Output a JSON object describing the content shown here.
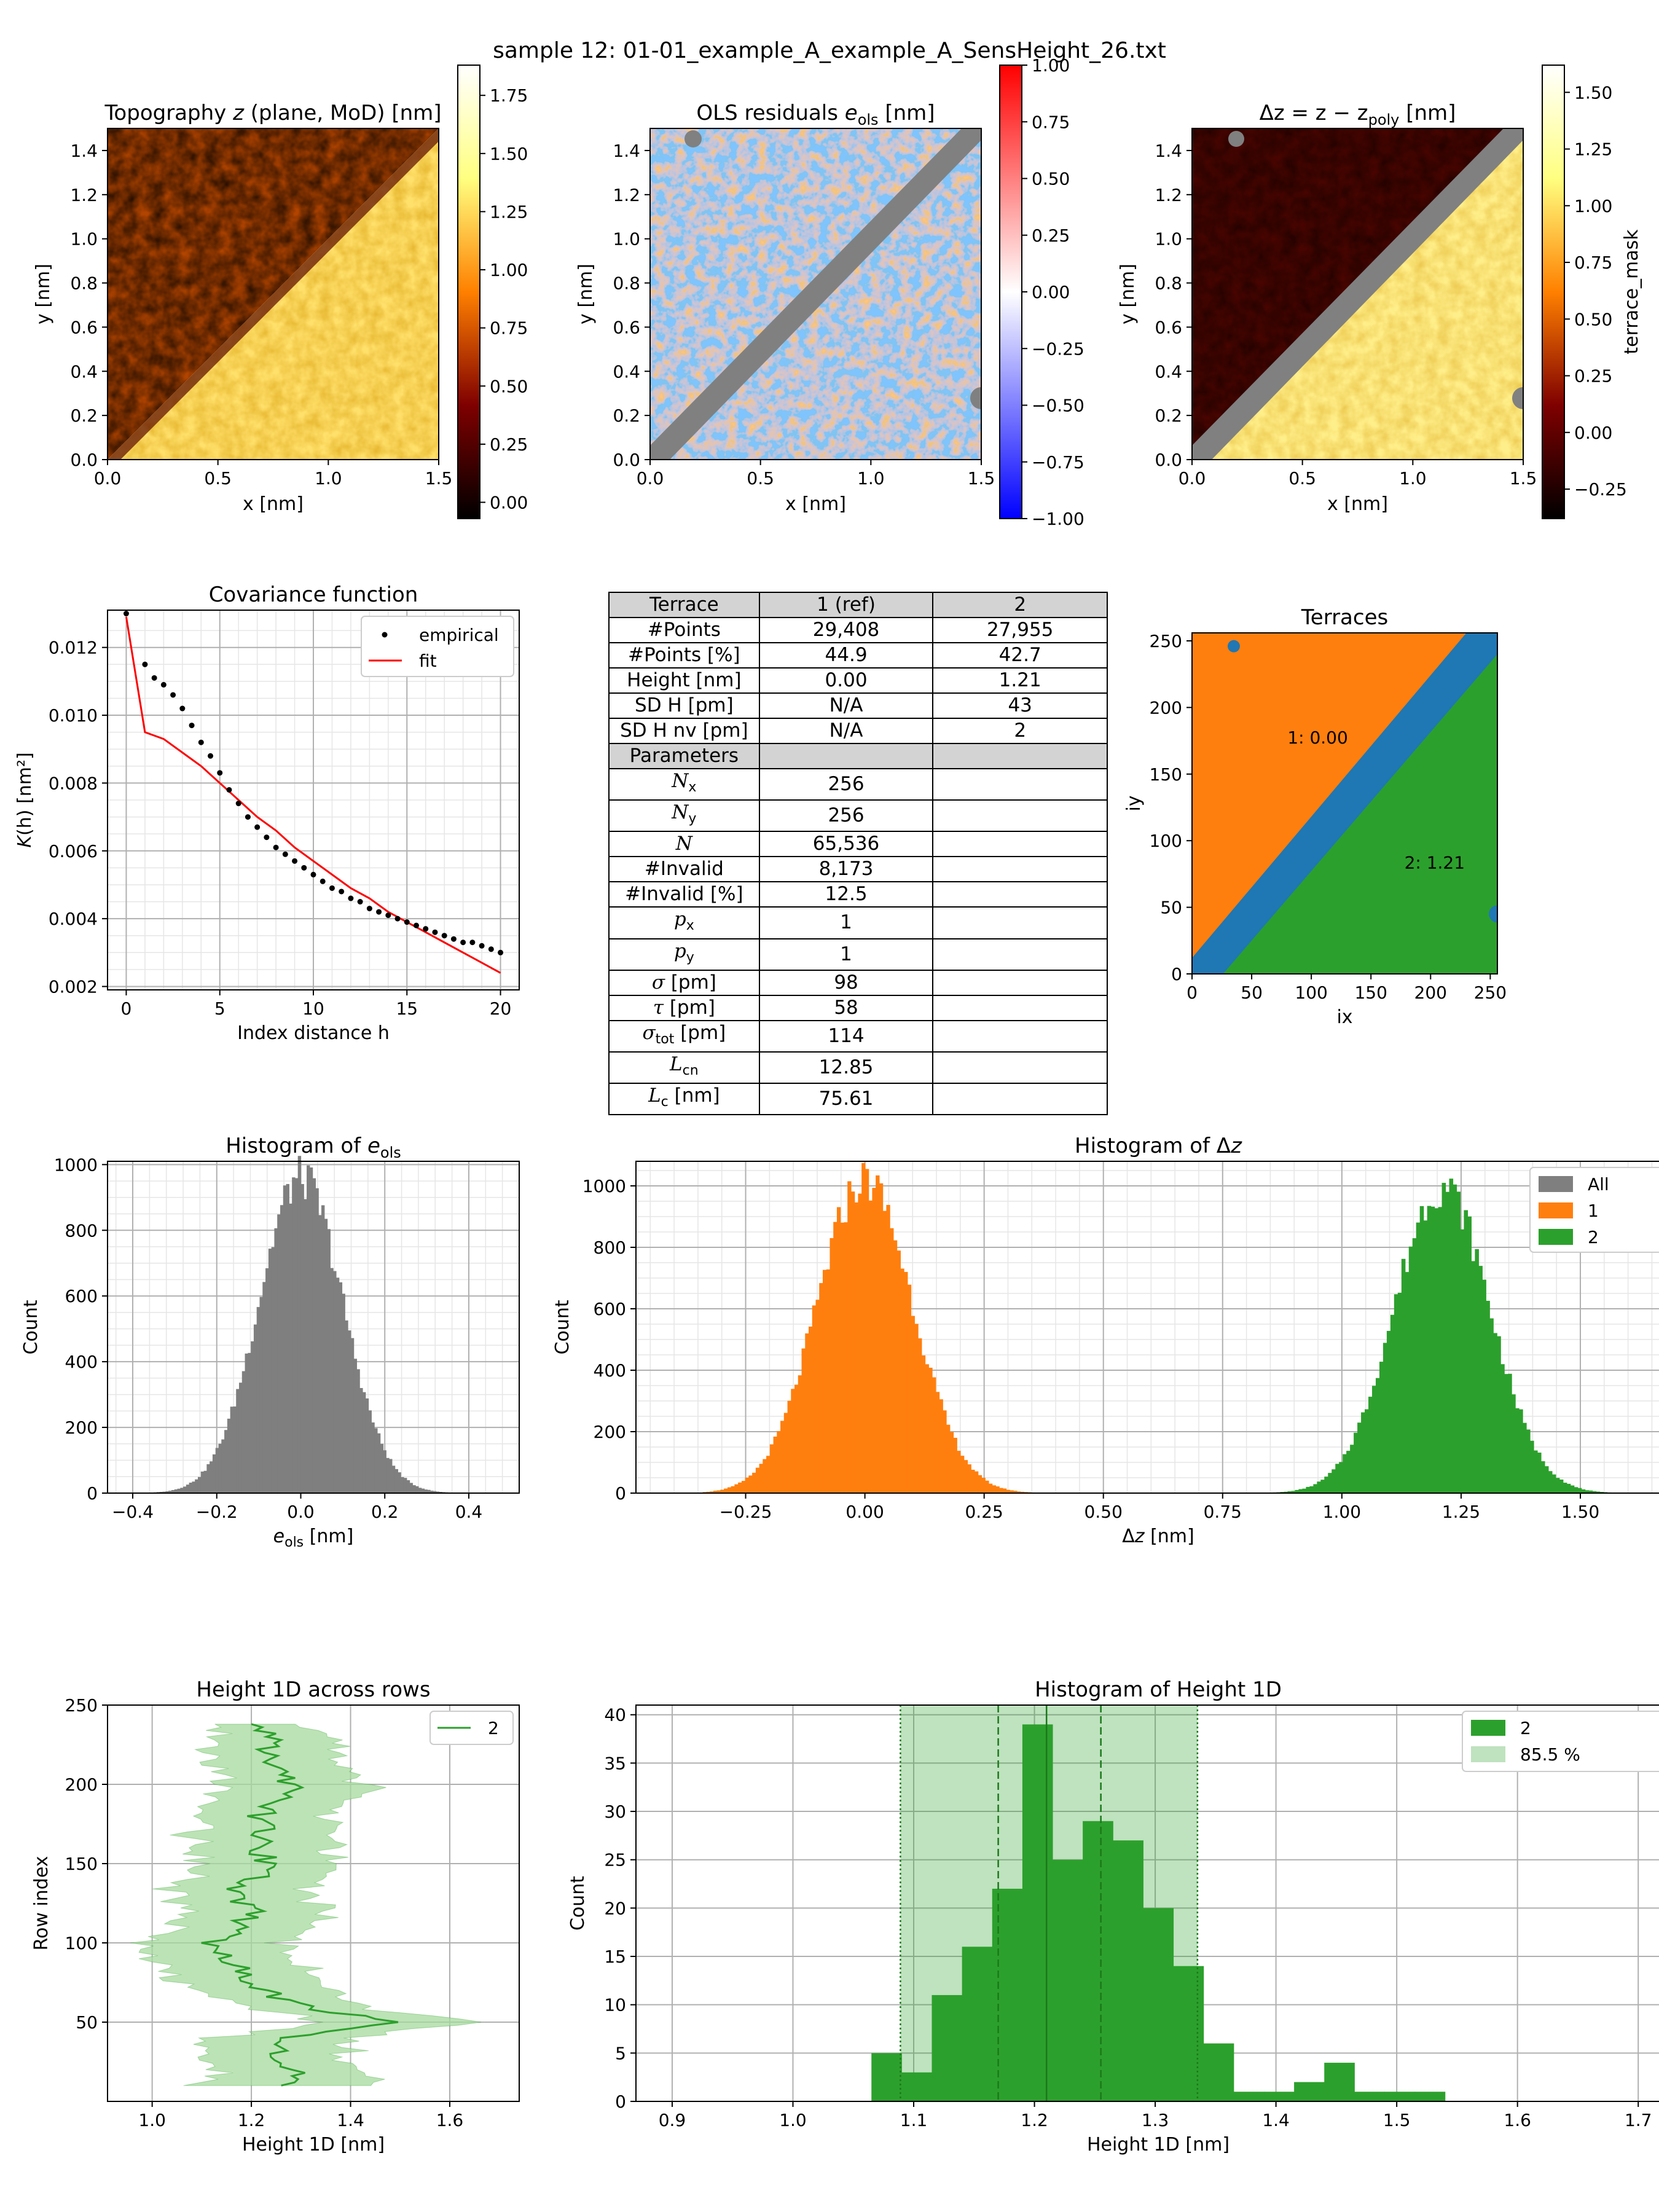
{
  "suptitle": "sample 12: 01-01_example_A_example_A_SensHeight_26.txt",
  "maps": [
    {
      "title_pre": "Topography ",
      "title_var": "z",
      "title_post": " (plane, MoD) [nm]",
      "xlabel": "x [nm]",
      "ylabel": "y [nm]",
      "xticks": [
        "0.0",
        "0.5",
        "1.0",
        "1.5"
      ],
      "yticks": [
        "0.0",
        "0.2",
        "0.4",
        "0.6",
        "0.8",
        "1.0",
        "1.2",
        "1.4"
      ],
      "colorbar": {
        "label": "",
        "ticks": [
          "0.00",
          "0.25",
          "0.50",
          "0.75",
          "1.00",
          "1.25",
          "1.50",
          "1.75"
        ],
        "range": [
          -0.07,
          1.88
        ],
        "cmap": "afmhot"
      }
    },
    {
      "title_pre": "OLS residuals ",
      "title_var": "e",
      "title_sub": "ols",
      "title_post": " [nm]",
      "xlabel": "x [nm]",
      "ylabel": "y [nm]",
      "xticks": [
        "0.0",
        "0.5",
        "1.0",
        "1.5"
      ],
      "yticks": [
        "0.0",
        "0.2",
        "0.4",
        "0.6",
        "0.8",
        "1.0",
        "1.2",
        "1.4"
      ],
      "colorbar": {
        "label": "",
        "ticks": [
          "1.00",
          "0.75",
          "0.50",
          "0.25",
          "0.00",
          "−0.25",
          "−0.50",
          "−0.75",
          "−1.00"
        ],
        "range": [
          -1.0,
          1.0
        ],
        "cmap": "bwr"
      }
    },
    {
      "title_pre": "Δz = z − z",
      "title_sub": "poly",
      "title_post": " [nm]",
      "xlabel": "x [nm]",
      "ylabel": "y [nm]",
      "xticks": [
        "0.0",
        "0.5",
        "1.0",
        "1.5"
      ],
      "yticks": [
        "0.0",
        "0.2",
        "0.4",
        "0.6",
        "0.8",
        "1.0",
        "1.2",
        "1.4"
      ],
      "colorbar": {
        "label": "terrace_mask",
        "ticks": [
          "1.50",
          "1.25",
          "1.00",
          "0.75",
          "0.50",
          "0.25",
          "0.00",
          "−0.25"
        ],
        "range": [
          -0.38,
          1.62
        ],
        "cmap": "afmhot"
      }
    }
  ],
  "covariance": {
    "title": "Covariance function",
    "xlabel": "Index distance h",
    "ylabel": "K(h) [nm²]",
    "xticks": [
      "0",
      "5",
      "10",
      "15",
      "20"
    ],
    "yticks": [
      "0.002",
      "0.004",
      "0.006",
      "0.008",
      "0.010",
      "0.012"
    ],
    "legend": [
      "empirical",
      "fit"
    ]
  },
  "table": {
    "header": [
      "Terrace",
      "1 (ref)",
      "2"
    ],
    "rows": [
      [
        "#Points",
        "29,408",
        "27,955"
      ],
      [
        "#Points [%]",
        "44.9",
        "42.7"
      ],
      [
        "Height [nm]",
        "0.00",
        "1.21"
      ],
      [
        "SD H [pm]",
        "N/A",
        "43"
      ],
      [
        "SD H nv [pm]",
        "N/A",
        "2"
      ]
    ],
    "params_header": "Parameters",
    "params": [
      {
        "label": "N",
        "sub": "x",
        "italic": true,
        "value": "256"
      },
      {
        "label": "N",
        "sub": "y",
        "italic": true,
        "value": "256"
      },
      {
        "label": "N",
        "sub": "",
        "italic": true,
        "value": "65,536"
      },
      {
        "label": "#Invalid",
        "sub": "",
        "italic": false,
        "value": "8,173"
      },
      {
        "label": "#Invalid [%]",
        "sub": "",
        "italic": false,
        "value": "12.5"
      },
      {
        "label": "p",
        "sub": "x",
        "italic": true,
        "value": "1"
      },
      {
        "label": "p",
        "sub": "y",
        "italic": true,
        "value": "1"
      },
      {
        "label": "σ",
        "sub": "",
        "italic": true,
        "unit": " [pm]",
        "value": "98"
      },
      {
        "label": "τ",
        "sub": "",
        "italic": true,
        "unit": " [pm]",
        "value": "58"
      },
      {
        "label": "σ",
        "sub": "tot",
        "italic": true,
        "unit": " [pm]",
        "value": "114"
      },
      {
        "label": "L",
        "sub": "cn",
        "italic": true,
        "value": "12.85"
      },
      {
        "label": "L",
        "sub": "c",
        "italic": true,
        "unit": " [nm]",
        "value": "75.61"
      }
    ]
  },
  "terraces": {
    "title": "Terraces",
    "xlabel": "ix",
    "ylabel": "iy",
    "xticks": [
      "0",
      "50",
      "100",
      "150",
      "200",
      "250"
    ],
    "yticks": [
      "0",
      "50",
      "100",
      "150",
      "200",
      "250"
    ],
    "labels": [
      "1: 0.00",
      "2: 1.21"
    ],
    "colors": {
      "terrace1": "#ff7f0e",
      "terrace2": "#2ca02c",
      "step": "#1f77b4"
    }
  },
  "colors": {
    "all": "#7f7f7f",
    "t1": "#ff7f0e",
    "t2": "#2ca02c",
    "fit": "#ff0000",
    "fill2": "#a6d99c"
  },
  "chart_data": [
    {
      "type": "scatter",
      "id": "covariance",
      "title": "Covariance function",
      "xlabel": "Index distance h",
      "ylabel": "K(h) [nm²]",
      "xlim": [
        -1,
        21
      ],
      "ylim": [
        0.0019,
        0.0131
      ],
      "series": [
        {
          "name": "empirical",
          "x": [
            0,
            1,
            1.5,
            2,
            2.5,
            3,
            3.5,
            4,
            4.5,
            5,
            5.5,
            6,
            6.5,
            7,
            7.5,
            8,
            8.5,
            9,
            9.5,
            10,
            10.5,
            11,
            11.5,
            12,
            12.5,
            13,
            13.5,
            14,
            14.5,
            15,
            15.5,
            16,
            16.5,
            17,
            17.5,
            18,
            18.5,
            19,
            19.5,
            20
          ],
          "y": [
            0.013,
            0.0115,
            0.0111,
            0.0109,
            0.0106,
            0.0102,
            0.0097,
            0.0092,
            0.0088,
            0.0083,
            0.0078,
            0.0074,
            0.007,
            0.0067,
            0.0064,
            0.0061,
            0.0059,
            0.0057,
            0.0055,
            0.0053,
            0.0051,
            0.0049,
            0.0048,
            0.0046,
            0.0045,
            0.0043,
            0.0042,
            0.0041,
            0.004,
            0.0039,
            0.0038,
            0.0037,
            0.0036,
            0.0035,
            0.0034,
            0.0033,
            0.0033,
            0.0032,
            0.0031,
            0.003
          ]
        },
        {
          "name": "fit",
          "x": [
            0,
            1,
            2,
            3,
            4,
            5,
            6,
            7,
            8,
            9,
            10,
            11,
            12,
            13,
            14,
            15,
            16,
            17,
            18,
            19,
            20
          ],
          "y": [
            0.0129,
            0.0095,
            0.0093,
            0.0089,
            0.0085,
            0.008,
            0.0075,
            0.007,
            0.0066,
            0.0061,
            0.0057,
            0.0053,
            0.0049,
            0.0046,
            0.0042,
            0.0039,
            0.0036,
            0.0033,
            0.003,
            0.0027,
            0.0024
          ]
        }
      ]
    },
    {
      "type": "bar",
      "id": "hist-eols",
      "title": "Histogram of e_ols",
      "xlabel": "e_ols [nm]",
      "ylabel": "Count",
      "xlim": [
        -0.46,
        0.52
      ],
      "ylim": [
        0,
        1010
      ],
      "xticks": [
        -0.4,
        -0.2,
        0.0,
        0.2,
        0.4
      ],
      "yticks": [
        0,
        200,
        400,
        600,
        800,
        1000
      ],
      "series": [
        {
          "name": "All",
          "mean": 0.0,
          "sd": 0.1,
          "peak": 960,
          "bins": [
            -0.42,
            0.49
          ],
          "nbins": 130
        }
      ]
    },
    {
      "type": "bar",
      "id": "hist-dz",
      "title": "Histogram of Δz",
      "xlabel": "Δz [nm]",
      "ylabel": "Count",
      "xlim": [
        -0.48,
        1.71
      ],
      "ylim": [
        0,
        1080
      ],
      "xticks": [
        -0.25,
        0.0,
        0.25,
        0.5,
        0.75,
        1.0,
        1.25,
        1.5
      ],
      "yticks": [
        0,
        200,
        400,
        600,
        800,
        1000
      ],
      "legend": [
        "All",
        "1",
        "2"
      ],
      "series": [
        {
          "name": "1",
          "mean": 0.0,
          "sd": 0.1,
          "peak": 1020,
          "bins": [
            -0.34,
            0.4
          ],
          "nbins": 100
        },
        {
          "name": "2",
          "mean": 1.21,
          "sd": 0.1,
          "peak": 1000,
          "bins": [
            0.84,
            1.61
          ],
          "nbins": 100
        }
      ]
    },
    {
      "type": "line",
      "id": "height1d-rows",
      "title": "Height 1D across rows",
      "xlabel": "Height 1D [nm]",
      "ylabel": "Row index",
      "xlim": [
        0.91,
        1.74
      ],
      "ylim": [
        0,
        250
      ],
      "xticks": [
        1.0,
        1.2,
        1.4,
        1.6
      ],
      "yticks": [
        50,
        100,
        150,
        200,
        250
      ],
      "series": [
        {
          "name": "2",
          "row": [
            10,
            20,
            30,
            40,
            45,
            50,
            55,
            60,
            70,
            80,
            90,
            100,
            110,
            120,
            130,
            140,
            150,
            160,
            170,
            180,
            190,
            200,
            210,
            220,
            230,
            238
          ],
          "mean": [
            1.26,
            1.3,
            1.24,
            1.26,
            1.35,
            1.48,
            1.4,
            1.3,
            1.22,
            1.18,
            1.16,
            1.12,
            1.17,
            1.22,
            1.16,
            1.2,
            1.24,
            1.2,
            1.23,
            1.21,
            1.26,
            1.28,
            1.25,
            1.22,
            1.24,
            1.22
          ],
          "lower": [
            1.08,
            1.15,
            1.1,
            1.12,
            1.22,
            1.33,
            1.28,
            1.18,
            1.08,
            1.04,
            1.02,
            0.97,
            1.03,
            1.08,
            1.03,
            1.06,
            1.1,
            1.06,
            1.09,
            1.08,
            1.12,
            1.14,
            1.12,
            1.1,
            1.12,
            1.15
          ],
          "upper": [
            1.42,
            1.44,
            1.38,
            1.4,
            1.48,
            1.65,
            1.52,
            1.42,
            1.36,
            1.32,
            1.3,
            1.27,
            1.31,
            1.36,
            1.3,
            1.34,
            1.38,
            1.34,
            1.37,
            1.35,
            1.4,
            1.43,
            1.39,
            1.35,
            1.37,
            1.3
          ]
        }
      ]
    },
    {
      "type": "bar",
      "id": "hist-height1d",
      "title": "Histogram of Height 1D",
      "xlabel": "Height 1D [nm]",
      "ylabel": "Count",
      "xlim": [
        0.87,
        1.735
      ],
      "ylim": [
        0,
        41
      ],
      "xticks": [
        0.9,
        1.0,
        1.1,
        1.2,
        1.3,
        1.4,
        1.5,
        1.6,
        1.7
      ],
      "yticks": [
        0,
        5,
        10,
        15,
        20,
        25,
        30,
        35,
        40
      ],
      "legend": [
        "2",
        "85.5 %"
      ],
      "bin_width": 0.025,
      "bin_left": [
        1.065,
        1.09,
        1.115,
        1.14,
        1.165,
        1.19,
        1.215,
        1.24,
        1.265,
        1.29,
        1.315,
        1.34,
        1.365,
        1.39,
        1.415,
        1.44,
        1.465,
        1.49,
        1.515,
        1.54
      ],
      "counts": [
        5,
        3,
        11,
        16,
        22,
        39,
        25,
        29,
        27,
        20,
        14,
        6,
        1,
        1,
        2,
        4,
        1,
        1,
        1,
        0
      ],
      "band": [
        1.089,
        1.335
      ],
      "dashed": [
        1.17,
        1.255
      ],
      "solid": 1.21
    }
  ]
}
